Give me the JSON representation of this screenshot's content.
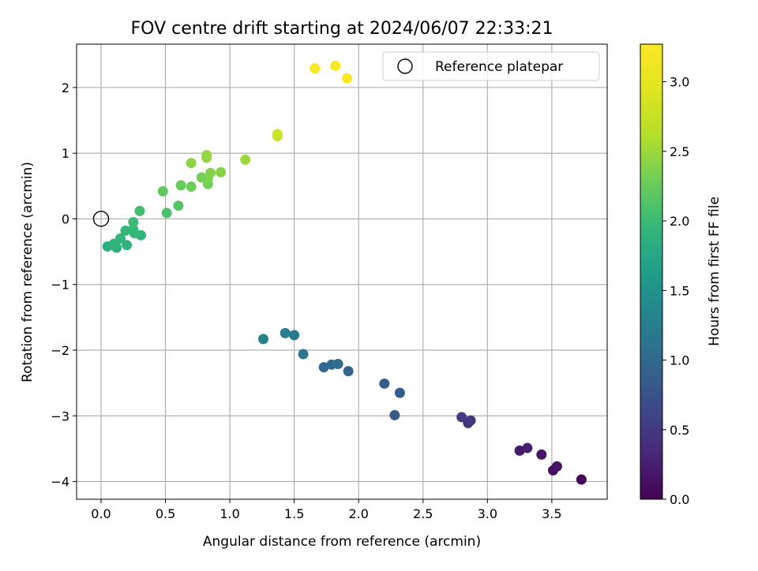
{
  "chart_data": {
    "type": "scatter",
    "title": "FOV centre drift starting at 2024/06/07 22:33:21",
    "xlabel": "Angular distance from reference (arcmin)",
    "ylabel": "Rotation from reference (arcmin)",
    "xlim": [
      -0.19,
      3.93
    ],
    "ylim": [
      -4.27,
      2.66
    ],
    "xticks": [
      0.0,
      0.5,
      1.0,
      1.5,
      2.0,
      2.5,
      3.0,
      3.5
    ],
    "xtick_labels": [
      "0.0",
      "0.5",
      "1.0",
      "1.5",
      "2.0",
      "2.5",
      "3.0",
      "3.5"
    ],
    "yticks": [
      2,
      1,
      0,
      -1,
      -2,
      -3,
      -4
    ],
    "ytick_labels": [
      "2",
      "1",
      "0",
      "−1",
      "−2",
      "−3",
      "−4"
    ],
    "grid": true,
    "legend": {
      "position": "top-right",
      "entries": [
        "Reference platepar"
      ]
    },
    "reference_point": {
      "x": 0.0,
      "y": 0.0
    },
    "colorbar": {
      "label": "Hours from first FF file",
      "colormap": "viridis",
      "range": [
        0.0,
        3.27
      ],
      "ticks": [
        0.0,
        0.5,
        1.0,
        1.5,
        2.0,
        2.5,
        3.0
      ],
      "tick_labels": [
        "0.0",
        "0.5",
        "1.0",
        "1.5",
        "2.0",
        "2.5",
        "3.0"
      ]
    },
    "points": [
      {
        "x": 3.73,
        "y": -3.97,
        "t": 0.05
      },
      {
        "x": 3.51,
        "y": -3.83,
        "t": 0.12
      },
      {
        "x": 3.54,
        "y": -3.77,
        "t": 0.15
      },
      {
        "x": 3.42,
        "y": -3.59,
        "t": 0.18
      },
      {
        "x": 3.25,
        "y": -3.53,
        "t": 0.22
      },
      {
        "x": 3.31,
        "y": -3.49,
        "t": 0.25
      },
      {
        "x": 2.85,
        "y": -3.11,
        "t": 0.45
      },
      {
        "x": 2.87,
        "y": -3.07,
        "t": 0.48
      },
      {
        "x": 2.8,
        "y": -3.02,
        "t": 0.52
      },
      {
        "x": 2.28,
        "y": -2.99,
        "t": 0.82
      },
      {
        "x": 2.32,
        "y": -2.65,
        "t": 0.85
      },
      {
        "x": 2.2,
        "y": -2.51,
        "t": 0.88
      },
      {
        "x": 1.92,
        "y": -2.32,
        "t": 0.95
      },
      {
        "x": 1.73,
        "y": -2.26,
        "t": 1.0
      },
      {
        "x": 1.79,
        "y": -2.22,
        "t": 1.02
      },
      {
        "x": 1.84,
        "y": -2.21,
        "t": 1.05
      },
      {
        "x": 1.57,
        "y": -2.06,
        "t": 1.15
      },
      {
        "x": 1.26,
        "y": -1.83,
        "t": 1.3
      },
      {
        "x": 1.5,
        "y": -1.77,
        "t": 1.2
      },
      {
        "x": 1.43,
        "y": -1.74,
        "t": 1.25
      },
      {
        "x": 0.05,
        "y": -0.42,
        "t": 1.85
      },
      {
        "x": 0.12,
        "y": -0.44,
        "t": 1.88
      },
      {
        "x": 0.1,
        "y": -0.38,
        "t": 1.9
      },
      {
        "x": 0.2,
        "y": -0.4,
        "t": 1.9
      },
      {
        "x": 0.15,
        "y": -0.3,
        "t": 1.92
      },
      {
        "x": 0.19,
        "y": -0.18,
        "t": 1.95
      },
      {
        "x": 0.25,
        "y": -0.16,
        "t": 1.97
      },
      {
        "x": 0.31,
        "y": -0.25,
        "t": 1.95
      },
      {
        "x": 0.26,
        "y": -0.22,
        "t": 1.96
      },
      {
        "x": 0.25,
        "y": -0.05,
        "t": 2.0
      },
      {
        "x": 0.3,
        "y": 0.12,
        "t": 2.05
      },
      {
        "x": 0.51,
        "y": 0.09,
        "t": 2.1
      },
      {
        "x": 0.6,
        "y": 0.2,
        "t": 2.15
      },
      {
        "x": 0.48,
        "y": 0.42,
        "t": 2.2
      },
      {
        "x": 0.62,
        "y": 0.51,
        "t": 2.25
      },
      {
        "x": 0.7,
        "y": 0.49,
        "t": 2.28
      },
      {
        "x": 0.83,
        "y": 0.53,
        "t": 2.3
      },
      {
        "x": 0.78,
        "y": 0.63,
        "t": 2.32
      },
      {
        "x": 0.83,
        "y": 0.62,
        "t": 2.35
      },
      {
        "x": 0.85,
        "y": 0.7,
        "t": 2.38
      },
      {
        "x": 0.93,
        "y": 0.71,
        "t": 2.4
      },
      {
        "x": 0.7,
        "y": 0.85,
        "t": 2.42
      },
      {
        "x": 0.82,
        "y": 0.93,
        "t": 2.45
      },
      {
        "x": 0.82,
        "y": 0.97,
        "t": 2.47
      },
      {
        "x": 1.12,
        "y": 0.9,
        "t": 2.5
      },
      {
        "x": 1.37,
        "y": 1.26,
        "t": 2.75
      },
      {
        "x": 1.37,
        "y": 1.29,
        "t": 2.78
      },
      {
        "x": 1.66,
        "y": 2.29,
        "t": 3.2
      },
      {
        "x": 1.82,
        "y": 2.33,
        "t": 3.22
      },
      {
        "x": 1.91,
        "y": 2.14,
        "t": 3.25
      }
    ]
  }
}
